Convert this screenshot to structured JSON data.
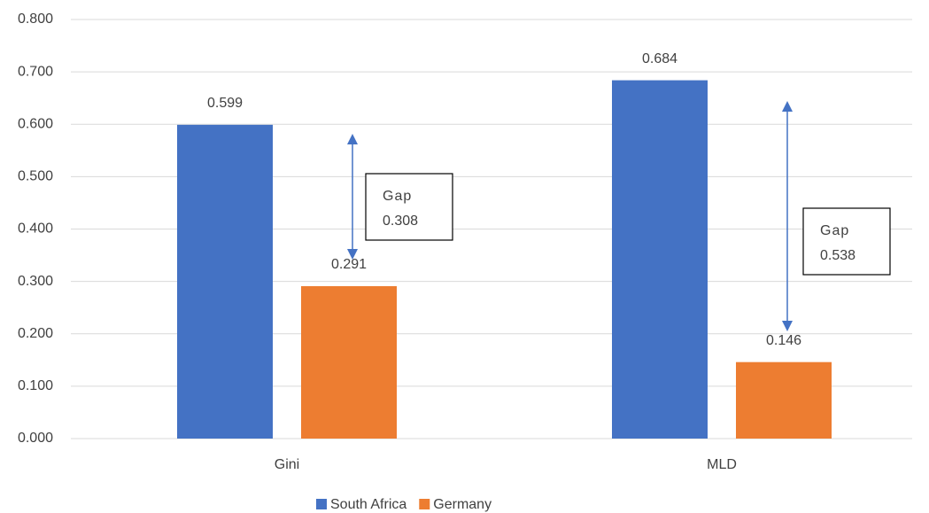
{
  "chart_data": {
    "type": "bar",
    "categories": [
      "Gini",
      "MLD"
    ],
    "series": [
      {
        "name": "South Africa",
        "color": "#4472c4",
        "values": [
          0.599,
          0.684
        ]
      },
      {
        "name": "Germany",
        "color": "#ed7d31",
        "values": [
          0.291,
          0.146
        ]
      }
    ],
    "ylim": [
      0,
      0.8
    ],
    "yticks": [
      {
        "value": 0,
        "label": "0.000"
      },
      {
        "value": 0.1,
        "label": "0.100"
      },
      {
        "value": 0.2,
        "label": "0.200"
      },
      {
        "value": 0.3,
        "label": "0.300"
      },
      {
        "value": 0.4,
        "label": "0.400"
      },
      {
        "value": 0.5,
        "label": "0.500"
      },
      {
        "value": 0.6,
        "label": "0.600"
      },
      {
        "value": 0.7,
        "label": "0.700"
      },
      {
        "value": 0.8,
        "label": "0.800"
      }
    ],
    "grid": true,
    "legend": "bottom",
    "annotations": [
      {
        "label": "Gap",
        "value": 0.308
      },
      {
        "label": "Gap",
        "value": 0.538
      }
    ]
  }
}
